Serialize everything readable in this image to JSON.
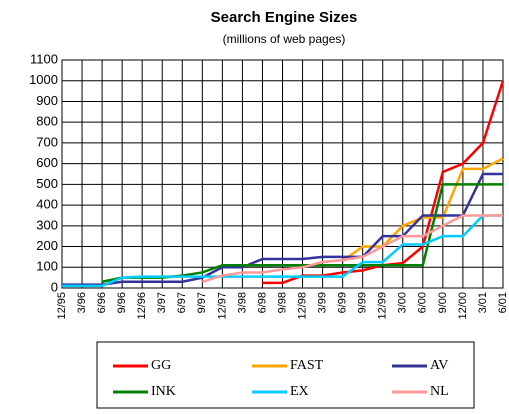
{
  "chart_data": {
    "type": "line",
    "title": "Search Engine Sizes",
    "subtitle": "(millions of web pages)",
    "categories": [
      "12/95",
      "3/96",
      "6/96",
      "9/96",
      "12/96",
      "3/97",
      "6/97",
      "9/97",
      "12/97",
      "3/98",
      "6/98",
      "9/98",
      "12/98",
      "3/99",
      "6/99",
      "9/99",
      "12/99",
      "3/00",
      "6/00",
      "9/00",
      "12/00",
      "3/01",
      "6/01"
    ],
    "series": [
      {
        "name": "GG",
        "color": "#ff0000",
        "values": [
          null,
          null,
          null,
          null,
          null,
          null,
          null,
          null,
          null,
          null,
          25,
          25,
          60,
          60,
          75,
          85,
          110,
          120,
          200,
          560,
          600,
          700,
          1000
        ]
      },
      {
        "name": "FAST",
        "color": "#ffa500",
        "values": [
          null,
          null,
          null,
          null,
          null,
          null,
          null,
          null,
          null,
          null,
          null,
          null,
          null,
          null,
          130,
          200,
          200,
          300,
          340,
          340,
          575,
          575,
          625
        ]
      },
      {
        "name": "AV",
        "color": "#333399",
        "values": [
          16,
          16,
          16,
          30,
          30,
          30,
          30,
          50,
          100,
          100,
          140,
          140,
          140,
          150,
          150,
          150,
          250,
          250,
          350,
          350,
          350,
          550,
          550
        ]
      },
      {
        "name": "INK",
        "color": "#008000",
        "values": [
          null,
          null,
          30,
          50,
          50,
          50,
          60,
          75,
          110,
          110,
          110,
          110,
          110,
          110,
          110,
          110,
          110,
          110,
          110,
          500,
          500,
          500,
          500
        ]
      },
      {
        "name": "EX",
        "color": "#00ccff",
        "values": [
          10,
          10,
          10,
          50,
          55,
          55,
          55,
          55,
          55,
          55,
          55,
          55,
          55,
          55,
          55,
          125,
          125,
          210,
          210,
          250,
          250,
          350,
          350
        ]
      },
      {
        "name": "NL",
        "color": "#ff9999",
        "values": [
          null,
          null,
          null,
          null,
          null,
          null,
          null,
          30,
          60,
          75,
          75,
          90,
          100,
          125,
          135,
          150,
          200,
          250,
          250,
          300,
          350,
          350,
          350
        ]
      }
    ],
    "ylim": [
      0,
      1100
    ],
    "yticks": [
      0,
      100,
      200,
      300,
      400,
      500,
      600,
      700,
      800,
      900,
      1000,
      1100
    ],
    "grid": true
  }
}
